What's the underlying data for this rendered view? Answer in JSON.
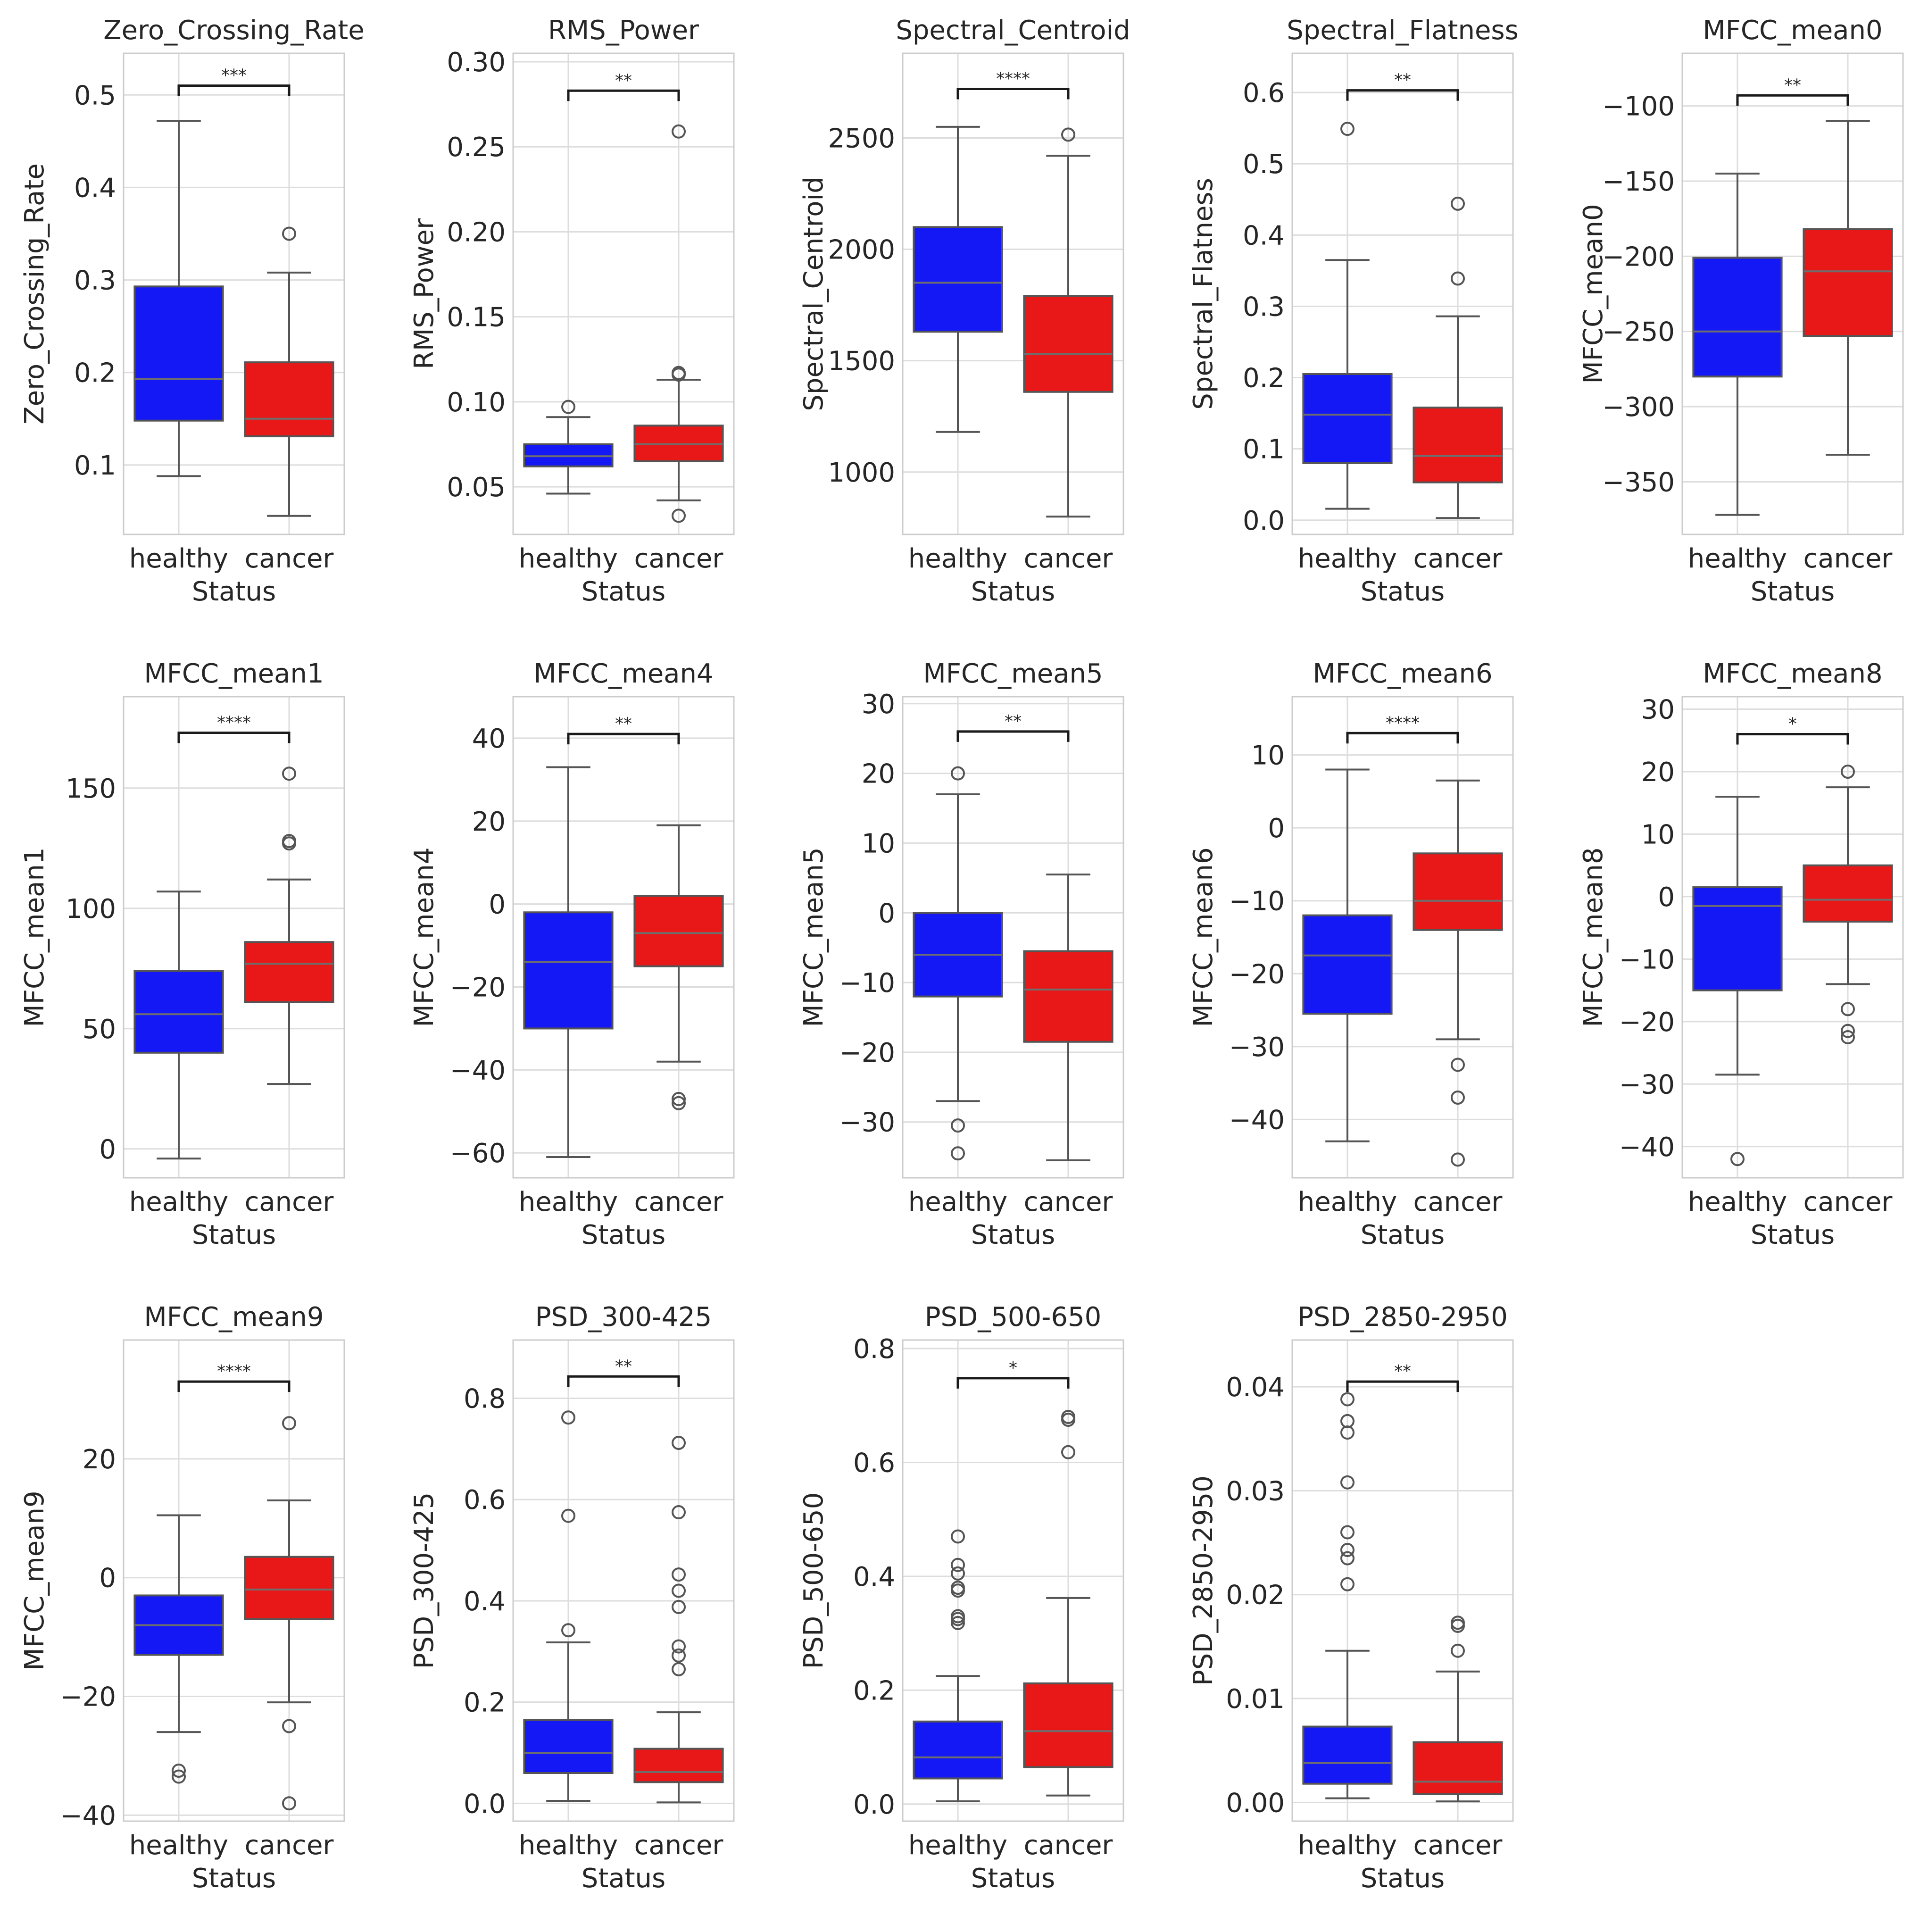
{
  "figure": {
    "status_label": "Status",
    "colors": {
      "healthy": "#1418f5",
      "cancer": "#e81818",
      "median": "#6e6e6e",
      "outline": "#555555",
      "grid": "#dddddd",
      "frame": "#cccccc"
    }
  },
  "chart_data": [
    {
      "type": "box",
      "title": "Zero_Crossing_Rate",
      "ylabel": "Zero_Crossing_Rate",
      "xlabel": "Status",
      "categories": [
        "healthy",
        "cancer"
      ],
      "ylim": [
        0.025,
        0.545
      ],
      "yticks": [
        0.1,
        0.2,
        0.3,
        0.4,
        0.5
      ],
      "ytick_labels": [
        "0.1",
        "0.2",
        "0.3",
        "0.4",
        "0.5"
      ],
      "significance": "***",
      "sig_y": 0.51,
      "boxes": [
        {
          "q1": 0.148,
          "median": 0.193,
          "q3": 0.293,
          "whislo": 0.088,
          "whishi": 0.472,
          "outliers": []
        },
        {
          "q1": 0.131,
          "median": 0.15,
          "q3": 0.211,
          "whislo": 0.045,
          "whishi": 0.308,
          "outliers": [
            0.35
          ]
        }
      ]
    },
    {
      "type": "box",
      "title": "RMS_Power",
      "ylabel": "RMS_Power",
      "xlabel": "Status",
      "categories": [
        "healthy",
        "cancer"
      ],
      "ylim": [
        0.022,
        0.305
      ],
      "yticks": [
        0.05,
        0.1,
        0.15,
        0.2,
        0.25,
        0.3
      ],
      "ytick_labels": [
        "0.05",
        "0.10",
        "0.15",
        "0.20",
        "0.25",
        "0.30"
      ],
      "significance": "**",
      "sig_y": 0.283,
      "boxes": [
        {
          "q1": 0.062,
          "median": 0.068,
          "q3": 0.075,
          "whislo": 0.046,
          "whishi": 0.091,
          "outliers": [
            0.097
          ]
        },
        {
          "q1": 0.065,
          "median": 0.075,
          "q3": 0.086,
          "whislo": 0.042,
          "whishi": 0.113,
          "outliers": [
            0.117,
            0.116,
            0.259,
            0.033
          ]
        }
      ]
    },
    {
      "type": "box",
      "title": "Spectral_Centroid",
      "ylabel": "Spectral_Centroid",
      "xlabel": "Status",
      "categories": [
        "healthy",
        "cancer"
      ],
      "ylim": [
        720,
        2880
      ],
      "yticks": [
        1000,
        1500,
        2000,
        2500
      ],
      "ytick_labels": [
        "1000",
        "1500",
        "2000",
        "2500"
      ],
      "significance": "****",
      "sig_y": 2720,
      "boxes": [
        {
          "q1": 1630,
          "median": 1850,
          "q3": 2100,
          "whislo": 1180,
          "whishi": 2550,
          "outliers": []
        },
        {
          "q1": 1360,
          "median": 1530,
          "q3": 1790,
          "whislo": 800,
          "whishi": 2420,
          "outliers": [
            2515
          ]
        }
      ]
    },
    {
      "type": "box",
      "title": "Spectral_Flatness",
      "ylabel": "Spectral_Flatness",
      "xlabel": "Status",
      "categories": [
        "healthy",
        "cancer"
      ],
      "ylim": [
        -0.02,
        0.655
      ],
      "yticks": [
        0.0,
        0.1,
        0.2,
        0.3,
        0.4,
        0.5,
        0.6
      ],
      "ytick_labels": [
        "0.0",
        "0.1",
        "0.2",
        "0.3",
        "0.4",
        "0.5",
        "0.6"
      ],
      "significance": "**",
      "sig_y": 0.603,
      "boxes": [
        {
          "q1": 0.08,
          "median": 0.148,
          "q3": 0.205,
          "whislo": 0.016,
          "whishi": 0.365,
          "outliers": [
            0.549
          ]
        },
        {
          "q1": 0.053,
          "median": 0.09,
          "q3": 0.158,
          "whislo": 0.003,
          "whishi": 0.286,
          "outliers": [
            0.339,
            0.444
          ]
        }
      ]
    },
    {
      "type": "box",
      "title": "MFCC_mean0",
      "ylabel": "MFCC_mean0",
      "xlabel": "Status",
      "categories": [
        "healthy",
        "cancer"
      ],
      "ylim": [
        -385,
        -65
      ],
      "yticks": [
        -350,
        -300,
        -250,
        -200,
        -150,
        -100
      ],
      "ytick_labels": [
        "−350",
        "−300",
        "−250",
        "−200",
        "−150",
        "−100"
      ],
      "significance": "**",
      "sig_y": -93,
      "boxes": [
        {
          "q1": -280,
          "median": -250,
          "q3": -201,
          "whislo": -372,
          "whishi": -145,
          "outliers": []
        },
        {
          "q1": -253,
          "median": -210,
          "q3": -182,
          "whislo": -332,
          "whishi": -110,
          "outliers": []
        }
      ]
    },
    {
      "type": "box",
      "title": "MFCC_mean1",
      "ylabel": "MFCC_mean1",
      "xlabel": "Status",
      "categories": [
        "healthy",
        "cancer"
      ],
      "ylim": [
        -12,
        188
      ],
      "yticks": [
        0,
        50,
        100,
        150
      ],
      "ytick_labels": [
        "0",
        "50",
        "100",
        "150"
      ],
      "significance": "****",
      "sig_y": 173,
      "boxes": [
        {
          "q1": 40,
          "median": 56,
          "q3": 74,
          "whislo": -4,
          "whishi": 107,
          "outliers": []
        },
        {
          "q1": 61,
          "median": 77,
          "q3": 86,
          "whislo": 27,
          "whishi": 112,
          "outliers": [
            127,
            128,
            156
          ]
        }
      ]
    },
    {
      "type": "box",
      "title": "MFCC_mean4",
      "ylabel": "MFCC_mean4",
      "xlabel": "Status",
      "categories": [
        "healthy",
        "cancer"
      ],
      "ylim": [
        -66,
        50
      ],
      "yticks": [
        -60,
        -40,
        -20,
        0,
        20,
        40
      ],
      "ytick_labels": [
        "−60",
        "−40",
        "−20",
        "0",
        "20",
        "40"
      ],
      "significance": "**",
      "sig_y": 41,
      "boxes": [
        {
          "q1": -30,
          "median": -14,
          "q3": -2,
          "whislo": -61,
          "whishi": 33,
          "outliers": []
        },
        {
          "q1": -15,
          "median": -7,
          "q3": 2,
          "whislo": -38,
          "whishi": 19,
          "outliers": [
            -47,
            -48
          ]
        }
      ]
    },
    {
      "type": "box",
      "title": "MFCC_mean5",
      "ylabel": "MFCC_mean5",
      "xlabel": "Status",
      "categories": [
        "healthy",
        "cancer"
      ],
      "ylim": [
        -38,
        31
      ],
      "yticks": [
        -30,
        -20,
        -10,
        0,
        10,
        20,
        30
      ],
      "ytick_labels": [
        "−30",
        "−20",
        "−10",
        "0",
        "10",
        "20",
        "30"
      ],
      "significance": "**",
      "sig_y": 26,
      "boxes": [
        {
          "q1": -12,
          "median": -6,
          "q3": 0,
          "whislo": -27,
          "whishi": 17,
          "outliers": [
            20,
            -30.5,
            -34.5
          ]
        },
        {
          "q1": -18.5,
          "median": -11,
          "q3": -5.5,
          "whislo": -35.5,
          "whishi": 5.5,
          "outliers": []
        }
      ]
    },
    {
      "type": "box",
      "title": "MFCC_mean6",
      "ylabel": "MFCC_mean6",
      "xlabel": "Status",
      "categories": [
        "healthy",
        "cancer"
      ],
      "ylim": [
        -48,
        18
      ],
      "yticks": [
        -40,
        -30,
        -20,
        -10,
        0,
        10
      ],
      "ytick_labels": [
        "−40",
        "−30",
        "−20",
        "−10",
        "0",
        "10"
      ],
      "significance": "****",
      "sig_y": 13,
      "boxes": [
        {
          "q1": -25.5,
          "median": -17.5,
          "q3": -12,
          "whislo": -43,
          "whishi": 8,
          "outliers": []
        },
        {
          "q1": -14,
          "median": -10,
          "q3": -3.5,
          "whislo": -29,
          "whishi": 6.5,
          "outliers": [
            -32.5,
            -37,
            -45.5
          ]
        }
      ]
    },
    {
      "type": "box",
      "title": "MFCC_mean8",
      "ylabel": "MFCC_mean8",
      "xlabel": "Status",
      "categories": [
        "healthy",
        "cancer"
      ],
      "ylim": [
        -45,
        32
      ],
      "yticks": [
        -40,
        -30,
        -20,
        -10,
        0,
        10,
        20,
        30
      ],
      "ytick_labels": [
        "−40",
        "−30",
        "−20",
        "−10",
        "0",
        "10",
        "20",
        "30"
      ],
      "significance": "*",
      "sig_y": 26,
      "boxes": [
        {
          "q1": -15,
          "median": -1.5,
          "q3": 1.5,
          "whislo": -28.5,
          "whishi": 16,
          "outliers": [
            -42
          ]
        },
        {
          "q1": -4,
          "median": -0.5,
          "q3": 5,
          "whislo": -14,
          "whishi": 17.5,
          "outliers": [
            20,
            -18,
            -21.5,
            -22.5
          ]
        }
      ]
    },
    {
      "type": "box",
      "title": "MFCC_mean9",
      "ylabel": "MFCC_mean9",
      "xlabel": "Status",
      "categories": [
        "healthy",
        "cancer"
      ],
      "ylim": [
        -41,
        40
      ],
      "yticks": [
        -40,
        -20,
        0,
        20
      ],
      "ytick_labels": [
        "−40",
        "−20",
        "0",
        "20"
      ],
      "significance": "****",
      "sig_y": 33,
      "boxes": [
        {
          "q1": -13,
          "median": -8,
          "q3": -3,
          "whislo": -26,
          "whishi": 10.5,
          "outliers": [
            -32.5,
            -33.5
          ]
        },
        {
          "q1": -7,
          "median": -2,
          "q3": 3.5,
          "whislo": -21,
          "whishi": 13,
          "outliers": [
            26,
            -25,
            -38
          ]
        }
      ]
    },
    {
      "type": "box",
      "title": "PSD_300-425",
      "ylabel": "PSD_300-425",
      "xlabel": "Status",
      "categories": [
        "healthy",
        "cancer"
      ],
      "ylim": [
        -0.035,
        0.915
      ],
      "yticks": [
        0.0,
        0.2,
        0.4,
        0.6,
        0.8
      ],
      "ytick_labels": [
        "0.0",
        "0.2",
        "0.4",
        "0.6",
        "0.8"
      ],
      "significance": "**",
      "sig_y": 0.843,
      "boxes": [
        {
          "q1": 0.06,
          "median": 0.1,
          "q3": 0.165,
          "whislo": 0.005,
          "whishi": 0.318,
          "outliers": [
            0.342,
            0.568,
            0.762
          ]
        },
        {
          "q1": 0.042,
          "median": 0.062,
          "q3": 0.108,
          "whislo": 0.002,
          "whishi": 0.18,
          "outliers": [
            0.265,
            0.292,
            0.31,
            0.388,
            0.42,
            0.452,
            0.575,
            0.712
          ]
        }
      ]
    },
    {
      "type": "box",
      "title": "PSD_500-650",
      "ylabel": "PSD_500-650",
      "xlabel": "Status",
      "categories": [
        "healthy",
        "cancer"
      ],
      "ylim": [
        -0.03,
        0.815
      ],
      "yticks": [
        0.0,
        0.2,
        0.4,
        0.6,
        0.8
      ],
      "ytick_labels": [
        "0.0",
        "0.2",
        "0.4",
        "0.6",
        "0.8"
      ],
      "significance": "*",
      "sig_y": 0.748,
      "boxes": [
        {
          "q1": 0.045,
          "median": 0.082,
          "q3": 0.145,
          "whislo": 0.005,
          "whishi": 0.225,
          "outliers": [
            0.318,
            0.325,
            0.33,
            0.375,
            0.38,
            0.405,
            0.42,
            0.47
          ]
        },
        {
          "q1": 0.065,
          "median": 0.128,
          "q3": 0.212,
          "whislo": 0.015,
          "whishi": 0.362,
          "outliers": [
            0.618,
            0.675,
            0.68
          ]
        }
      ]
    },
    {
      "type": "box",
      "title": "PSD_2850-2950",
      "ylabel": "PSD_2850-2950",
      "xlabel": "Status",
      "categories": [
        "healthy",
        "cancer"
      ],
      "ylim": [
        -0.0018,
        0.0445
      ],
      "yticks": [
        0.0,
        0.01,
        0.02,
        0.03,
        0.04
      ],
      "ytick_labels": [
        "0.00",
        "0.01",
        "0.02",
        "0.03",
        "0.04"
      ],
      "significance": "**",
      "sig_y": 0.0405,
      "boxes": [
        {
          "q1": 0.0018,
          "median": 0.0038,
          "q3": 0.0073,
          "whislo": 0.0004,
          "whishi": 0.0146,
          "outliers": [
            0.021,
            0.0235,
            0.0243,
            0.026,
            0.0308,
            0.0356,
            0.0367,
            0.0388
          ]
        },
        {
          "q1": 0.0008,
          "median": 0.002,
          "q3": 0.0058,
          "whislo": 0.0001,
          "whishi": 0.0126,
          "outliers": [
            0.0146,
            0.017,
            0.0173
          ]
        }
      ]
    }
  ]
}
